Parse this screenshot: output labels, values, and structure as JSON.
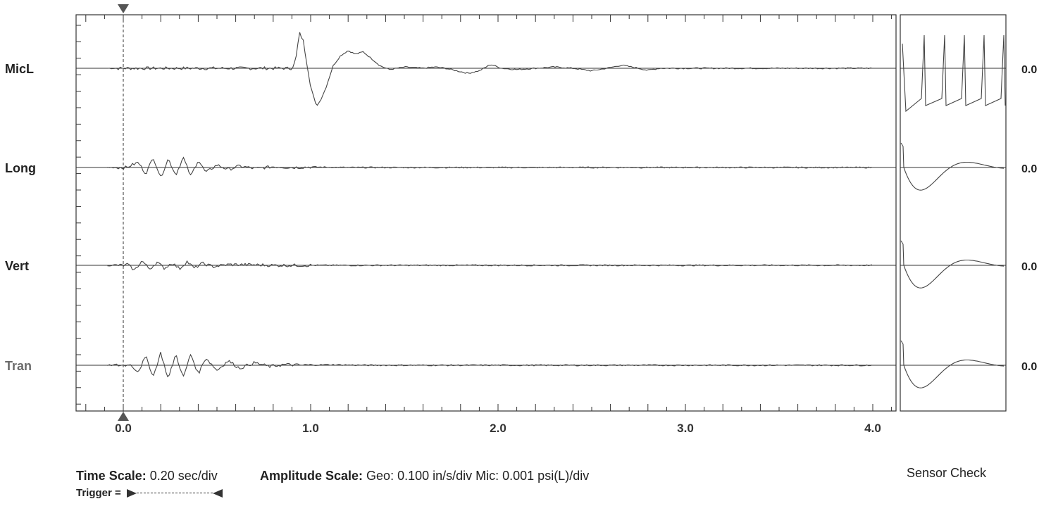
{
  "chart_data": {
    "type": "line",
    "x_unit": "sec",
    "xlim": [
      -0.2,
      4.1
    ],
    "x_ticks": [
      "0.0",
      "1.0",
      "2.0",
      "3.0",
      "4.0"
    ],
    "channels": [
      {
        "name": "MicL",
        "readout": "0.0",
        "faded": false,
        "points": [
          [
            0.9,
            0.0
          ],
          [
            0.92,
            0.3
          ],
          [
            0.94,
            1.4
          ],
          [
            0.96,
            1.1
          ],
          [
            0.98,
            0.2
          ],
          [
            1.0,
            -0.7
          ],
          [
            1.03,
            -1.5
          ],
          [
            1.05,
            -1.3
          ],
          [
            1.08,
            -0.8
          ],
          [
            1.12,
            0.1
          ],
          [
            1.16,
            0.5
          ],
          [
            1.2,
            0.7
          ],
          [
            1.24,
            0.55
          ],
          [
            1.28,
            0.65
          ],
          [
            1.33,
            0.35
          ],
          [
            1.37,
            0.1
          ],
          [
            1.42,
            -0.05
          ],
          [
            1.5,
            0.05
          ],
          [
            1.6,
            0.0
          ],
          [
            1.66,
            0.05
          ],
          [
            1.72,
            0.0
          ],
          [
            1.78,
            -0.1
          ],
          [
            1.84,
            -0.2
          ],
          [
            1.9,
            -0.1
          ],
          [
            1.96,
            0.15
          ],
          [
            2.02,
            0.0
          ],
          [
            2.1,
            -0.05
          ],
          [
            2.2,
            0.0
          ],
          [
            2.3,
            0.05
          ],
          [
            2.4,
            0.0
          ],
          [
            2.5,
            -0.1
          ],
          [
            2.58,
            0.0
          ],
          [
            2.66,
            0.12
          ],
          [
            2.73,
            0.03
          ],
          [
            2.8,
            -0.08
          ],
          [
            2.86,
            0.0
          ]
        ]
      },
      {
        "name": "Long",
        "readout": "0.0",
        "faded": false,
        "points": [
          [
            0.03,
            0.05
          ],
          [
            0.08,
            0.2
          ],
          [
            0.12,
            -0.25
          ],
          [
            0.16,
            0.4
          ],
          [
            0.2,
            -0.4
          ],
          [
            0.24,
            0.35
          ],
          [
            0.28,
            -0.3
          ],
          [
            0.32,
            0.4
          ],
          [
            0.36,
            -0.35
          ],
          [
            0.4,
            0.3
          ],
          [
            0.44,
            -0.2
          ],
          [
            0.5,
            0.1
          ],
          [
            0.56,
            -0.08
          ],
          [
            0.62,
            0.06
          ],
          [
            0.7,
            -0.04
          ],
          [
            0.8,
            0.03
          ],
          [
            0.9,
            0.0
          ],
          [
            1.0,
            0.02
          ],
          [
            1.2,
            0.0
          ]
        ]
      },
      {
        "name": "Vert",
        "readout": "0.0",
        "faded": false,
        "points": [
          [
            0.02,
            0.05
          ],
          [
            0.06,
            -0.2
          ],
          [
            0.1,
            0.18
          ],
          [
            0.14,
            -0.15
          ],
          [
            0.18,
            0.12
          ],
          [
            0.22,
            -0.12
          ],
          [
            0.26,
            0.1
          ],
          [
            0.3,
            -0.14
          ],
          [
            0.34,
            0.15
          ],
          [
            0.38,
            -0.12
          ],
          [
            0.42,
            0.08
          ],
          [
            0.48,
            -0.05
          ],
          [
            0.56,
            0.03
          ],
          [
            0.7,
            0.02
          ],
          [
            0.8,
            0.0
          ]
        ]
      },
      {
        "name": "Tran",
        "readout": "0.0",
        "faded": true,
        "points": [
          [
            0.03,
            0.06
          ],
          [
            0.08,
            -0.25
          ],
          [
            0.12,
            0.35
          ],
          [
            0.16,
            -0.45
          ],
          [
            0.2,
            0.5
          ],
          [
            0.24,
            -0.55
          ],
          [
            0.28,
            0.45
          ],
          [
            0.32,
            -0.5
          ],
          [
            0.36,
            0.45
          ],
          [
            0.4,
            -0.35
          ],
          [
            0.44,
            0.3
          ],
          [
            0.5,
            -0.2
          ],
          [
            0.56,
            0.18
          ],
          [
            0.62,
            -0.12
          ],
          [
            0.7,
            0.1
          ],
          [
            0.78,
            -0.05
          ],
          [
            0.86,
            0.03
          ],
          [
            0.95,
            0.0
          ],
          [
            1.1,
            0.02
          ],
          [
            1.3,
            0.0
          ]
        ]
      }
    ],
    "sensor_check_label": "Sensor Check"
  },
  "footer": {
    "time_scale_label": "Time Scale:",
    "time_scale_value": "0.20 sec/div",
    "amplitude_scale_label": "Amplitude Scale:",
    "amplitude_scale_value": "Geo: 0.100 in/s/div Mic: 0.001 psi(L)/div",
    "trigger_label": "Trigger ="
  }
}
